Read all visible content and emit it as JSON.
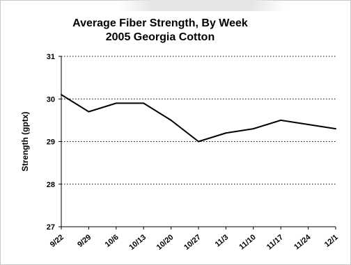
{
  "chart_data": {
    "type": "line",
    "title": "Average Fiber Strength, By Week",
    "subtitle": "2005 Georgia Cotton",
    "xlabel": "",
    "ylabel": "Strength (gptx)",
    "categories": [
      "9/22",
      "9/29",
      "10/6",
      "10/13",
      "10/20",
      "10/27",
      "11/3",
      "11/10",
      "11/17",
      "11/24",
      "12/1"
    ],
    "series": [
      {
        "values": [
          30.1,
          29.7,
          29.9,
          29.9,
          29.5,
          29.0,
          29.2,
          29.3,
          29.5,
          29.4,
          29.3
        ]
      }
    ],
    "ylim": [
      27,
      31
    ],
    "yticks": [
      27,
      28,
      29,
      30,
      31
    ],
    "grid": "horizontal dotted",
    "legend": "none",
    "colors": {
      "line": "#000000",
      "grid": "#000000",
      "plot_background": "#ffffff",
      "frame": "#c8c8c8"
    }
  }
}
